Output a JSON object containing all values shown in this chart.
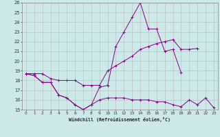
{
  "x": [
    0,
    1,
    2,
    3,
    4,
    5,
    6,
    7,
    8,
    9,
    10,
    11,
    12,
    13,
    14,
    15,
    16,
    17,
    18,
    19,
    20,
    21,
    22,
    23
  ],
  "line1": [
    18.7,
    18.5,
    17.8,
    17.8,
    16.5,
    16.2,
    15.5,
    15.0,
    15.5,
    17.3,
    17.5,
    21.5,
    23.0,
    24.5,
    26.0,
    23.3,
    23.3,
    21.0,
    21.2,
    18.8,
    null,
    null,
    null,
    null
  ],
  "line2": [
    18.7,
    18.7,
    18.7,
    18.2,
    18.0,
    18.0,
    18.0,
    17.5,
    17.5,
    17.5,
    19.0,
    19.5,
    20.0,
    20.5,
    21.2,
    21.5,
    21.8,
    22.0,
    22.2,
    21.2,
    21.2,
    21.3,
    null,
    null
  ],
  "line3": [
    18.7,
    18.5,
    17.8,
    17.8,
    16.5,
    16.2,
    15.5,
    15.0,
    15.5,
    16.0,
    16.2,
    16.2,
    16.2,
    16.0,
    16.0,
    16.0,
    15.8,
    15.8,
    15.5,
    15.3,
    16.0,
    15.5,
    16.2,
    15.2
  ],
  "bg_color": "#cce8e8",
  "line_color": "#880088",
  "grid_color": "#bbbbbb",
  "xlabel": "Windchill (Refroidissement éolien,°C)",
  "ylim": [
    15,
    26
  ],
  "xlim": [
    -0.5,
    23.5
  ],
  "yticks": [
    15,
    16,
    17,
    18,
    19,
    20,
    21,
    22,
    23,
    24,
    25,
    26
  ],
  "xticks": [
    0,
    1,
    2,
    3,
    4,
    5,
    6,
    7,
    8,
    9,
    10,
    11,
    12,
    13,
    14,
    15,
    16,
    17,
    18,
    19,
    20,
    21,
    22,
    23
  ]
}
